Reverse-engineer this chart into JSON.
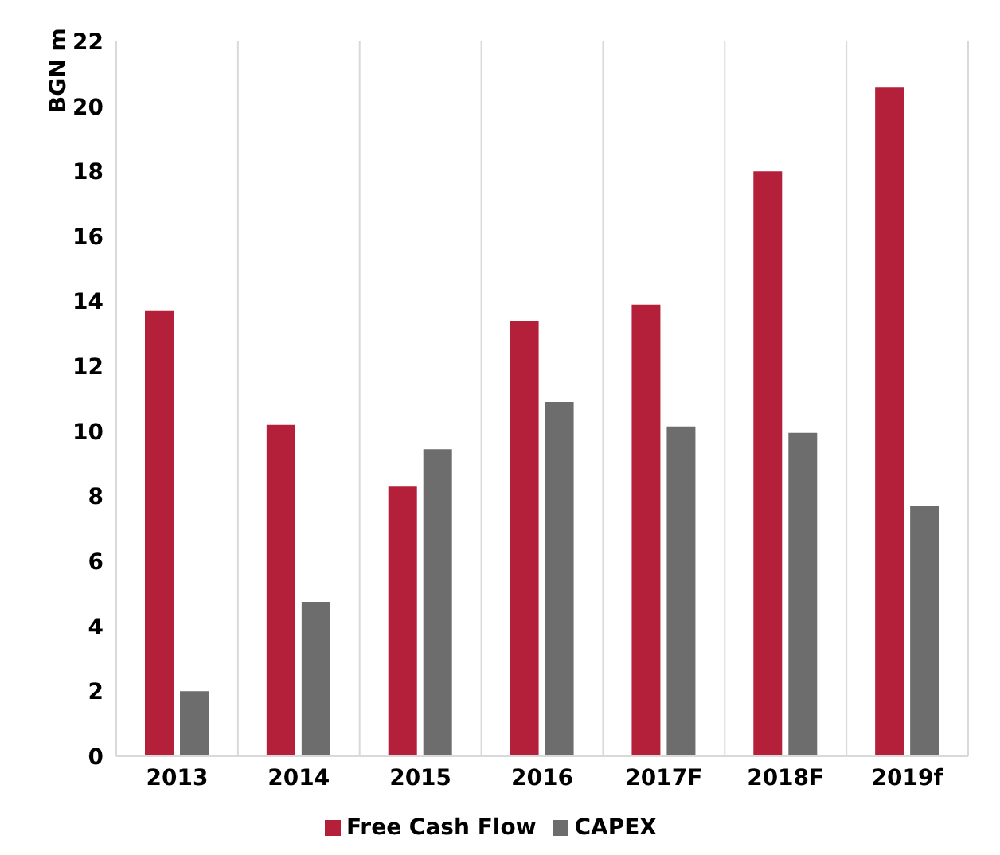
{
  "chart_data": {
    "type": "bar",
    "ylabel": "BGN m",
    "categories": [
      "2013",
      "2014",
      "2015",
      "2016",
      "2017F",
      "2018F",
      "2019f"
    ],
    "series": [
      {
        "name": "Free Cash Flow",
        "color": "#b41f3a",
        "values": [
          13.7,
          10.2,
          8.3,
          13.4,
          13.9,
          18.0,
          20.6
        ]
      },
      {
        "name": "CAPEX",
        "color": "#6d6d6d",
        "values": [
          2.0,
          4.75,
          9.45,
          10.9,
          10.15,
          9.95,
          7.7
        ]
      }
    ],
    "ylim": [
      0,
      22
    ],
    "yticks": [
      0,
      2,
      4,
      6,
      8,
      10,
      12,
      14,
      16,
      18,
      20,
      22
    ],
    "grid": "x",
    "legend": "bottom"
  }
}
